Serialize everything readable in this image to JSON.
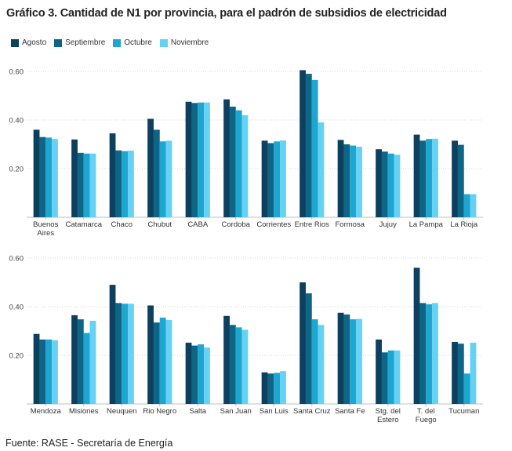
{
  "title": "Gráfico 3. Cantidad de N1 por provincia, para el padrón de subsidios de electricidad",
  "source": "Fuente: RASE - Secretaría de Energía",
  "legend": [
    {
      "name": "Agosto",
      "color": "#0d3f5f"
    },
    {
      "name": "Septiembre",
      "color": "#0f6585"
    },
    {
      "name": "Octubre",
      "color": "#1ea6cf"
    },
    {
      "name": "Noviembre",
      "color": "#64d2f5"
    }
  ],
  "chart_data": [
    {
      "type": "bar",
      "ylim": [
        0,
        0.6
      ],
      "yticks": [
        0.2,
        0.4,
        0.6
      ],
      "ytick_labels": [
        "0.20",
        "0.40",
        "0.60"
      ],
      "categories": [
        "Buenos Aires",
        "Catamarca",
        "Chaco",
        "Chubut",
        "CABA",
        "Cordoba",
        "Corrientes",
        "Entre Rios",
        "Formosa",
        "Jujuy",
        "La Pampa",
        "La Rioja"
      ],
      "category_lines": [
        [
          "Buenos",
          "Aires"
        ],
        [
          "Catamarca"
        ],
        [
          "Chaco"
        ],
        [
          "Chubut"
        ],
        [
          "CABA"
        ],
        [
          "Cordoba"
        ],
        [
          "Corrientes"
        ],
        [
          "Entre Rios"
        ],
        [
          "Formosa"
        ],
        [
          "Jujuy"
        ],
        [
          "La Pampa"
        ],
        [
          "La Rioja"
        ]
      ],
      "series": [
        {
          "name": "Agosto",
          "values": [
            0.36,
            0.32,
            0.345,
            0.405,
            0.475,
            0.485,
            0.315,
            0.605,
            0.318,
            0.28,
            0.34,
            0.315
          ]
        },
        {
          "name": "Septiembre",
          "values": [
            0.33,
            0.265,
            0.275,
            0.36,
            0.47,
            0.455,
            0.305,
            0.59,
            0.3,
            0.27,
            0.315,
            0.298
          ]
        },
        {
          "name": "Octubre",
          "values": [
            0.328,
            0.262,
            0.272,
            0.312,
            0.472,
            0.44,
            0.312,
            0.565,
            0.295,
            0.262,
            0.322,
            0.095
          ]
        },
        {
          "name": "Noviembre",
          "values": [
            0.322,
            0.262,
            0.274,
            0.315,
            0.472,
            0.42,
            0.316,
            0.39,
            0.29,
            0.257,
            0.323,
            0.095
          ]
        }
      ]
    },
    {
      "type": "bar",
      "ylim": [
        0,
        0.6
      ],
      "yticks": [
        0.2,
        0.4,
        0.6
      ],
      "ytick_labels": [
        "0.20",
        "0.40",
        "0.60"
      ],
      "categories": [
        "Mendoza",
        "Misiones",
        "Neuquen",
        "Rio Negro",
        "Salta",
        "San Juan",
        "San Luis",
        "Santa Cruz",
        "Santa Fe",
        "Stg. del Estero",
        "T. del Fuego",
        "Tucuman"
      ],
      "category_lines": [
        [
          "Mendoza"
        ],
        [
          "Misiones"
        ],
        [
          "Neuquen"
        ],
        [
          "Rio Negro"
        ],
        [
          "Salta"
        ],
        [
          "San Juan"
        ],
        [
          "San Luis"
        ],
        [
          "Santa Cruz"
        ],
        [
          "Santa Fe"
        ],
        [
          "Stg. del",
          "Estero"
        ],
        [
          "T. del",
          "Fuego"
        ],
        [
          "Tucuman"
        ]
      ],
      "series": [
        {
          "name": "Agosto",
          "values": [
            0.288,
            0.365,
            0.49,
            0.405,
            0.252,
            0.362,
            0.13,
            0.5,
            0.375,
            0.265,
            0.56,
            0.255
          ]
        },
        {
          "name": "Septiembre",
          "values": [
            0.265,
            0.348,
            0.415,
            0.335,
            0.24,
            0.325,
            0.125,
            0.455,
            0.368,
            0.212,
            0.415,
            0.248
          ]
        },
        {
          "name": "Octubre",
          "values": [
            0.265,
            0.292,
            0.412,
            0.355,
            0.245,
            0.315,
            0.128,
            0.348,
            0.348,
            0.22,
            0.41,
            0.125
          ]
        },
        {
          "name": "Noviembre",
          "values": [
            0.262,
            0.342,
            0.412,
            0.345,
            0.232,
            0.305,
            0.135,
            0.325,
            0.35,
            0.22,
            0.415,
            0.252
          ]
        }
      ]
    }
  ]
}
